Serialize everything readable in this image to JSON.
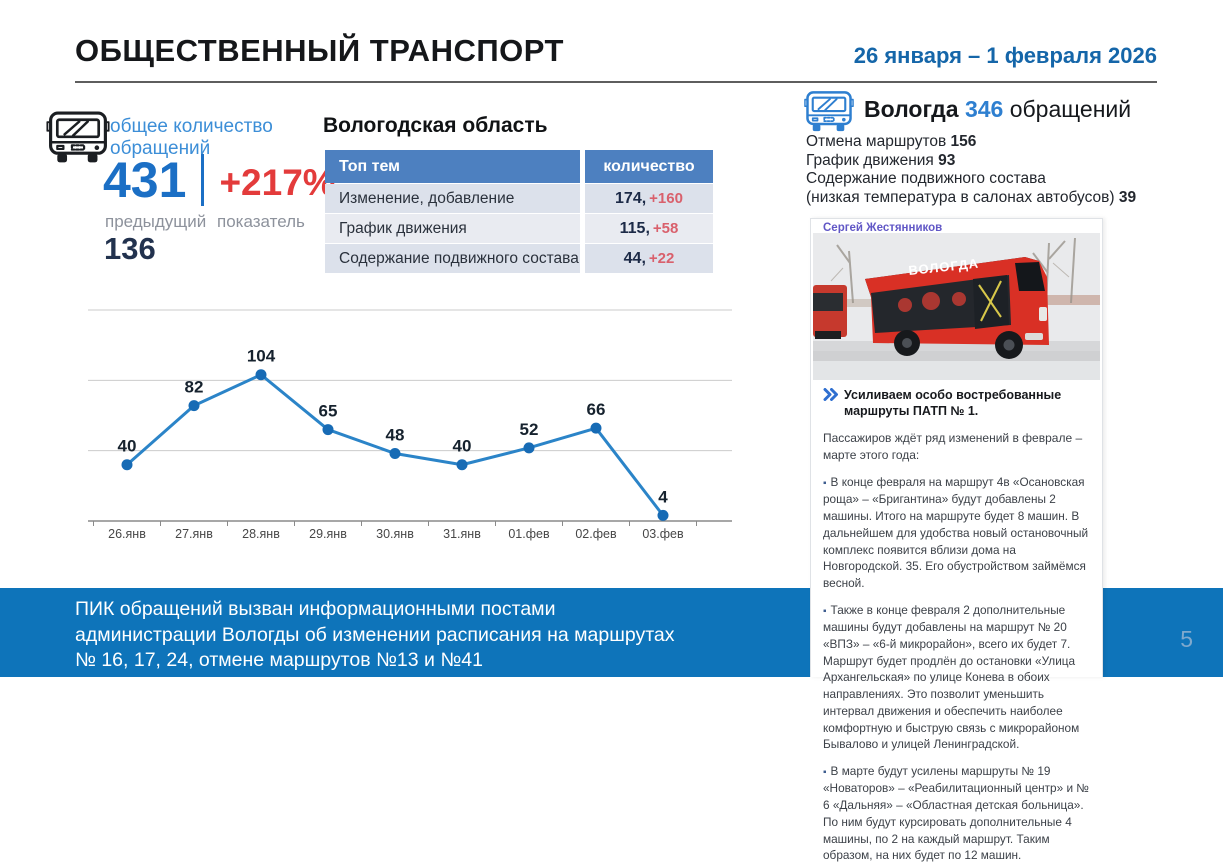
{
  "header": {
    "title": "ОБЩЕСТВЕННЫЙ ТРАНСПОРТ",
    "date_range": "26 января – 1 февраля 2026"
  },
  "summary": {
    "label": "общее количество обращений",
    "total": "431",
    "delta": "+217%",
    "previous_label": "предыдущий показатель",
    "previous_value": "136"
  },
  "region_table": {
    "title": "Вологодская область",
    "col_topic": "Топ тем",
    "col_count": "количество",
    "rows": [
      {
        "label": "Изменение, добавление маршрутов",
        "value": "174,",
        "delta": "+160"
      },
      {
        "label": "График движения",
        "value": "115,",
        "delta": "+58"
      },
      {
        "label": "Содержание подвижного состава",
        "value": "44,",
        "delta": "+22"
      }
    ]
  },
  "chart_data": {
    "type": "line",
    "x": [
      "26.янв",
      "27.янв",
      "28.янв",
      "29.янв",
      "30.янв",
      "31.янв",
      "01.фев",
      "02.фев",
      "03.фев"
    ],
    "values": [
      40,
      82,
      104,
      65,
      48,
      40,
      52,
      66,
      4
    ],
    "title": "",
    "xlabel": "",
    "ylabel": "",
    "ylim": [
      0,
      150
    ],
    "gridlines": [
      50,
      100,
      150
    ],
    "grid": true,
    "legend": false,
    "line_color": "#2b84c8",
    "marker_color": "#176bb5",
    "label_color": "#16222e"
  },
  "city_panel": {
    "city": "Вологда",
    "count": "346",
    "count_suffix": "обращений",
    "stat_lines": [
      {
        "text": "Отмена маршрутов",
        "value": "156"
      },
      {
        "text": "График движения",
        "value": "93"
      },
      {
        "text": "Содержание подвижного состава",
        "value": ""
      },
      {
        "text": "(низкая температура в салонах автобусов)",
        "value": "39"
      }
    ]
  },
  "post": {
    "author": "Сергей Жестянников",
    "photo_bus_text": "ВОЛОГДА",
    "headline": "Усиливаем особо востребованные маршруты ПАТП № 1.",
    "intro": "Пассажиров ждёт ряд изменений в феврале – марте этого года:",
    "bullets": [
      "В конце февраля на маршрут 4в «Осановская роща» – «Бригантина» будут добавлены 2 машины. Итого на маршруте будет 8 машин. В дальнейшем для удобства новый остановочный комплекс появится вблизи дома на Новгородской. 35. Его обустройством займёмся весной.",
      "Также в конце февраля 2 дополнительные машины будут добавлены на маршрут № 20 «ВПЗ» – «6-й микрорайон», всего их будет 7. Маршрут будет продлён до остановки «Улица Архангельская» по улице Конева в обоих направлениях. Это позволит уменьшить интервал движения и обеспечить наиболее комфортную и быструю связь с микрорайоном Бывалово и улицей Ленинградской.",
      "В марте будут усилены маршруты № 19 «Новаторов» – «Реабилитационный центр» и № 6 «Дальняя» – «Областная детская больница». По ним будут курсировать дополнительные 4 машины, по 2 на каждый маршрут. Таким образом, на них будет по 12 машин."
    ]
  },
  "footer": {
    "line1": "ПИК обращений вызван информационными постами",
    "line2": "администрации Вологды об изменении расписания на маршрутах",
    "line3": "№ 16, 17, 24, отмене маршрутов №13 и №41",
    "page": "5"
  },
  "colors": {
    "accent_blue": "#1b6fc5",
    "light_blue": "#3c8ed7",
    "table_header_blue": "#4d80c0",
    "alert_red": "#e33b3b",
    "delta_red": "#d9606c",
    "footer_blue": "#0e74ba",
    "dark_navy": "#22324e"
  }
}
